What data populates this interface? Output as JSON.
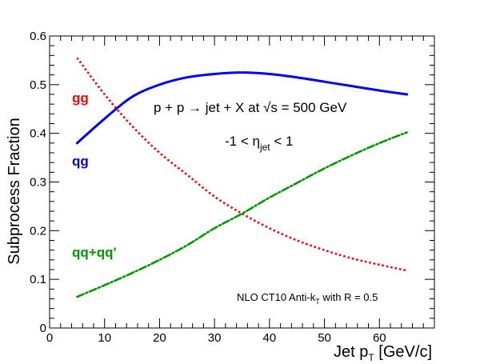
{
  "chart_data": {
    "type": "line",
    "xlabel": "Jet p",
    "xlabel_sub": "T",
    "xlabel_unit": " [GeV/c]",
    "ylabel": "Subprocess Fraction",
    "xlim": [
      0,
      70
    ],
    "ylim": [
      0,
      0.6
    ],
    "x_ticks": [
      0,
      10,
      20,
      30,
      40,
      50,
      60
    ],
    "y_ticks": [
      0,
      0.1,
      0.2,
      0.3,
      0.4,
      0.5,
      0.6
    ],
    "x_tick_labels": [
      "0",
      "10",
      "20",
      "30",
      "40",
      "50",
      "60"
    ],
    "y_tick_labels": [
      "0",
      "0.1",
      "0.2",
      "0.3",
      "0.4",
      "0.5",
      "0.6"
    ],
    "grid": false,
    "legend": "inline labels",
    "series": [
      {
        "name": "gg",
        "color": "#ff0000",
        "style": "dotted",
        "x": [
          5,
          10,
          15,
          20,
          25,
          30,
          35,
          40,
          45,
          50,
          55,
          60,
          65
        ],
        "y": [
          0.555,
          0.48,
          0.415,
          0.36,
          0.315,
          0.27,
          0.235,
          0.205,
          0.18,
          0.16,
          0.143,
          0.13,
          0.118
        ]
      },
      {
        "name": "qg",
        "color": "#0000ff",
        "style": "solid",
        "x": [
          5,
          10,
          15,
          20,
          25,
          30,
          35,
          40,
          45,
          50,
          55,
          60,
          65
        ],
        "y": [
          0.38,
          0.43,
          0.475,
          0.5,
          0.515,
          0.522,
          0.525,
          0.522,
          0.515,
          0.506,
          0.497,
          0.488,
          0.48
        ]
      },
      {
        "name": "qq+qq'",
        "color": "#009900",
        "style": "dashdot",
        "x": [
          5,
          10,
          15,
          20,
          25,
          30,
          35,
          40,
          45,
          50,
          55,
          60,
          65
        ],
        "y": [
          0.064,
          0.088,
          0.113,
          0.14,
          0.17,
          0.205,
          0.235,
          0.268,
          0.298,
          0.328,
          0.355,
          0.38,
          0.402
        ]
      }
    ],
    "annotations": {
      "reaction": "p + p → jet + X at √s = 500 GeV",
      "eta_pre": "-1 < η",
      "eta_sub": "jet",
      "eta_post": " < 1",
      "nlo_pre": "NLO CT10 Anti-k",
      "nlo_sub": "T",
      "nlo_post": " with R = 0.5"
    }
  }
}
